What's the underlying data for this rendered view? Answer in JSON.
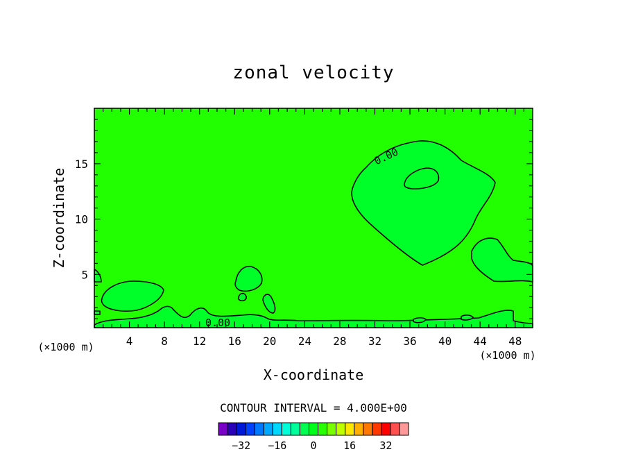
{
  "chart_data": {
    "type": "contour",
    "title": "zonal velocity",
    "xlabel": "X-coordinate",
    "ylabel": "Z-coordinate",
    "x_unit": "(×1000 m)",
    "y_unit": "(×1000 m)",
    "xlim": [
      0,
      50
    ],
    "ylim": [
      0.2,
      20
    ],
    "x_ticks": [
      4,
      8,
      12,
      16,
      20,
      24,
      28,
      32,
      36,
      40,
      44,
      48
    ],
    "y_ticks": [
      5,
      10,
      15
    ],
    "contour_interval_text": "CONTOUR INTERVAL = 4.000E+00",
    "contour_labels": [
      "0.00",
      "0.00"
    ],
    "colorbar": {
      "ticks": [
        "-32",
        "-16",
        "0",
        "16",
        "32"
      ],
      "colors": [
        "#7a00c8",
        "#2a00b8",
        "#0018d8",
        "#0040ff",
        "#0078ff",
        "#00a8ff",
        "#00d8ff",
        "#00ffd8",
        "#00ff9a",
        "#00ff50",
        "#00ff1a",
        "#28ff00",
        "#78ff00",
        "#c0ff00",
        "#ffe800",
        "#ffb000",
        "#ff7800",
        "#ff3a00",
        "#ff0000",
        "#ff5050",
        "#ff9898"
      ]
    },
    "colors": {
      "background_field": "#22ff00",
      "positive_regions": "#00ff28"
    }
  }
}
